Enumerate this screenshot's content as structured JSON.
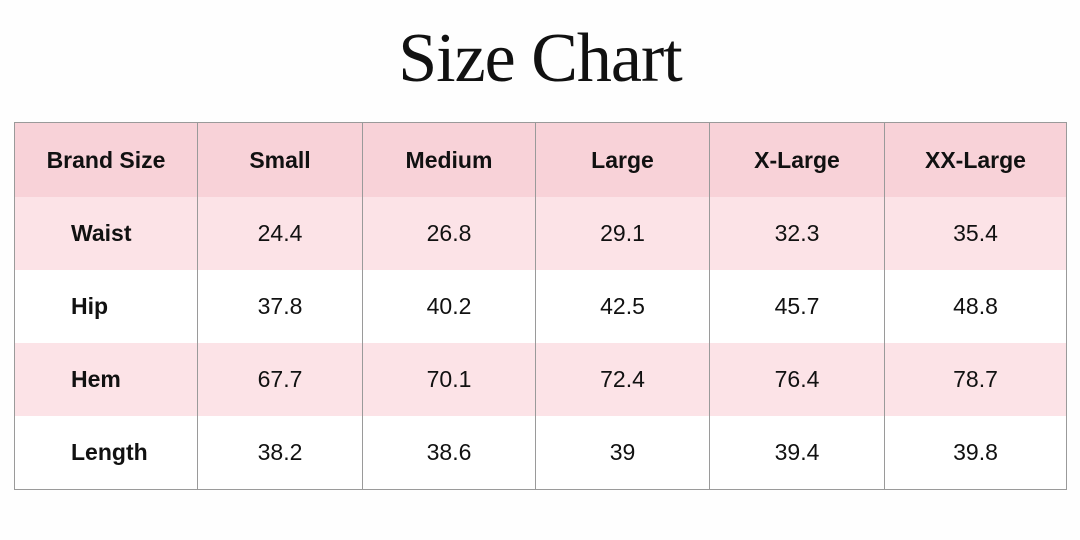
{
  "header": {
    "title": "Size Chart"
  },
  "table": {
    "columns": [
      "Brand Size",
      "Small",
      "Medium",
      "Large",
      "X-Large",
      "XX-Large"
    ],
    "rows": [
      [
        "Waist",
        24.4,
        26.8,
        29.1,
        32.3,
        35.4
      ],
      [
        "Hip",
        37.8,
        40.2,
        42.5,
        45.7,
        48.8
      ],
      [
        "Hem",
        67.7,
        70.1,
        72.4,
        76.4,
        78.7
      ],
      [
        "Length",
        38.2,
        38.6,
        39,
        39.4,
        39.8
      ]
    ]
  }
}
